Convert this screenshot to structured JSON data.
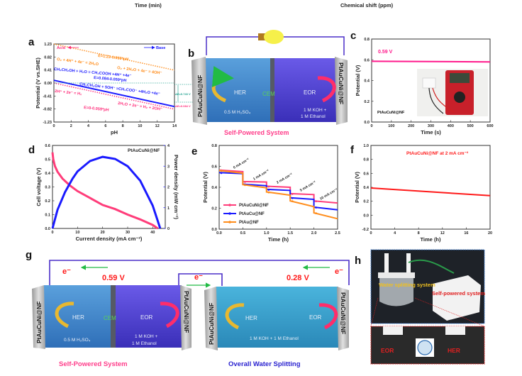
{
  "cropped_top": {
    "left_axis_label": "Time (min)",
    "right_axis_label": "Chemical shift (ppm)"
  },
  "panel_labels": {
    "a": "a",
    "b": "b",
    "c": "c",
    "d": "d",
    "e": "e",
    "f": "f",
    "g": "g",
    "h": "h"
  },
  "panel_b": {
    "electrode_left": "PtAuCuNi@NF",
    "electrode_right": "PtAuCuNi@NF",
    "her": "HER",
    "cem": "CEM",
    "eor": "EOR",
    "left_electrolyte": "0.5 M H₂SO₄",
    "right_electrolyte_1": "1 M KOH +",
    "right_electrolyte_2": "1 M Ethanol",
    "caption": "Self-Powered System",
    "icons": [
      "light-bulb-icon",
      "curved-arrow-icon"
    ]
  },
  "panel_g": {
    "electron_1": "e⁻",
    "electron_2": "e⁻",
    "electron_3": "e⁻",
    "voltage_left": "0.59 V",
    "voltage_right": "0.28 V",
    "cell1": {
      "electrode_left": "PtAuCuNi@NF",
      "electrode_right": "PtAuCuNi@NF",
      "her": "HER",
      "cem": "CEM",
      "eor": "EOR",
      "left_electrolyte": "0.5 M H₂SO₄",
      "right_electrolyte_1": "1 M KOH +",
      "right_electrolyte_2": "1 M Ethanol"
    },
    "cell2": {
      "electrode_left": "PtAuCuNi@NF",
      "electrode_right": "PtAuCuNi@NF",
      "her": "HER",
      "eor": "EOR",
      "electrolyte": "1 M KOH + 1 M Ethanol"
    },
    "caption_left": "Self-Powered System",
    "caption_right": "Overall Water Splitting"
  },
  "panel_h": {
    "label_water": "Water splitting system",
    "label_self": "Self-powered system",
    "eor": "EOR",
    "her": "HER"
  },
  "colors": {
    "pink": "#ff2d7a",
    "blue": "#1a1aff",
    "orange": "#ff8c1a",
    "teal": "#1a9e8c",
    "red": "#ff1a1a",
    "wire": "#4a2fc8",
    "green": "#22bb44"
  },
  "chart_data": [
    {
      "id": "a",
      "type": "line",
      "xlabel": "pH",
      "ylabel": "Potential (V vs.SHE)",
      "xlim": [
        0,
        14
      ],
      "ylim": [
        -1.23,
        1.23
      ],
      "xticks": [
        0,
        2,
        4,
        6,
        8,
        10,
        12,
        14
      ],
      "yticks": [
        1.23,
        0.82,
        0.41,
        0.0,
        -0.41,
        -0.82,
        -1.23
      ],
      "series": [
        {
          "style": "dotted",
          "color": "#ff8c1a",
          "x": [
            0,
            14
          ],
          "y": [
            1.23,
            0.404
          ]
        },
        {
          "style": "solid",
          "color": "#1a1aff",
          "x": [
            0,
            14
          ],
          "y": [
            0.084,
            -0.742
          ]
        },
        {
          "style": "dotted",
          "color": "#ff2d7a",
          "x": [
            0,
            14
          ],
          "y": [
            0,
            -0.826
          ]
        }
      ],
      "annotations": {
        "acid": "Acid",
        "base": "Base",
        "o2_eq_line": "E=1.23-0.059*pH",
        "o2_acid": "O₂ + 4H⁺ + 4e⁻ = 2H₂O",
        "o2_base": "O₂ + 2H₂O + 4e⁻ = 4OH⁻",
        "eth_acid": "CH₃CH₂OH + H₂O = CH₃COOH +4H⁺ +4e⁻",
        "eth_eq_line": "E=0.084-0.059*pH",
        "eth_base": "CH₃CH₂OH + 5OH⁻ =CH₃COO⁻ +4H₂O +4e⁻",
        "h2_acid": "2H⁺ + 2e⁻ = H₂",
        "h2_base": "2H₂O + 2e⁻ = H₂ + 2OH⁻",
        "h2_eq_line": "E=0-0.059*pH",
        "delta_1": "ΔE=0.743 V",
        "delta_2": "ΔE=0.084 V"
      }
    },
    {
      "id": "c",
      "type": "line",
      "xlabel": "Time (s)",
      "ylabel": "Potential (V)",
      "xlim": [
        0,
        600
      ],
      "ylim": [
        0,
        0.8
      ],
      "xticks": [
        0,
        100,
        200,
        300,
        400,
        500,
        600
      ],
      "yticks": [
        0.0,
        0.2,
        0.4,
        0.6,
        0.8
      ],
      "series": [
        {
          "color": "#ff1a8c",
          "x": [
            0,
            600
          ],
          "y": [
            0.585,
            0.58
          ]
        }
      ],
      "annotations": {
        "value": "0.59 V",
        "sample": "PtAuCuNi@NF"
      }
    },
    {
      "id": "d",
      "type": "line",
      "xlabel": "Current density (mA cm⁻²)",
      "ylabel": "Cell voltage (V)",
      "ylabel_right": "Power density (mW cm⁻²)",
      "xlim": [
        0,
        45
      ],
      "ylim": [
        0,
        0.6
      ],
      "ylim_right": [
        0,
        4
      ],
      "xticks": [
        0,
        10,
        20,
        30,
        40
      ],
      "yticks": [
        0.0,
        0.1,
        0.2,
        0.3,
        0.4,
        0.5,
        0.6
      ],
      "yticks_right": [
        0,
        1,
        2,
        3,
        4
      ],
      "series": [
        {
          "axis": "left",
          "color": "#ff3d7a",
          "x": [
            0,
            0.3,
            1,
            2,
            4,
            7,
            10,
            15,
            20,
            25,
            30,
            35,
            40,
            42
          ],
          "y": [
            0.55,
            0.5,
            0.45,
            0.41,
            0.36,
            0.31,
            0.27,
            0.22,
            0.17,
            0.14,
            0.1,
            0.065,
            0.025,
            0.0
          ]
        },
        {
          "axis": "right",
          "color": "#1a1aff",
          "x": [
            0,
            2,
            5,
            8,
            10,
            15,
            20,
            25,
            30,
            35,
            40,
            43
          ],
          "y": [
            0,
            0.9,
            1.75,
            2.4,
            2.75,
            3.25,
            3.45,
            3.35,
            3.0,
            2.3,
            1.1,
            0
          ]
        }
      ],
      "annotations": {
        "sample": "PtAuCuNi@NF"
      }
    },
    {
      "id": "e",
      "type": "line",
      "xlabel": "Time (h)",
      "ylabel": "Potential (V)",
      "xlim": [
        0,
        2.5
      ],
      "ylim": [
        0,
        0.8
      ],
      "xticks": [
        0.0,
        0.5,
        1.0,
        1.5,
        2.0,
        2.5
      ],
      "yticks": [
        0.0,
        0.2,
        0.4,
        0.6,
        0.8
      ],
      "legend": "bottom-left",
      "series": [
        {
          "name": "PtAuCuNi@NF",
          "color": "#ff3d7a",
          "x": [
            0,
            0.5,
            0.5,
            1.0,
            1.0,
            1.5,
            1.5,
            2.0,
            2.0,
            2.5
          ],
          "y": [
            0.565,
            0.55,
            0.455,
            0.45,
            0.41,
            0.4,
            0.34,
            0.33,
            0.27,
            0.25
          ]
        },
        {
          "name": "PtAuCu@NF",
          "color": "#1a1aff",
          "x": [
            0,
            0.5,
            0.5,
            1.0,
            1.0,
            1.5,
            1.5,
            2.0,
            2.0,
            2.5
          ],
          "y": [
            0.54,
            0.53,
            0.43,
            0.415,
            0.38,
            0.37,
            0.3,
            0.285,
            0.21,
            0.185
          ]
        },
        {
          "name": "PtAu@NF",
          "color": "#ff8c1a",
          "x": [
            0,
            0.5,
            0.5,
            1.0,
            1.0,
            1.5,
            1.5,
            2.0,
            2.0,
            2.5
          ],
          "y": [
            0.56,
            0.535,
            0.425,
            0.395,
            0.355,
            0.325,
            0.27,
            0.215,
            0.155,
            0.1
          ]
        }
      ],
      "annotations": {
        "step_labels": [
          "0 mA cm⁻²",
          "1 mA cm⁻²",
          "2 mA cm⁻²",
          "5 mA cm⁻²",
          "10 mA cm⁻²"
        ]
      }
    },
    {
      "id": "f",
      "type": "line",
      "xlabel": "Time (h)",
      "ylabel": "Potential (V)",
      "xlim": [
        0,
        20
      ],
      "ylim": [
        -0.2,
        1.0
      ],
      "xticks": [
        0,
        4,
        8,
        12,
        16,
        20
      ],
      "yticks": [
        -0.2,
        0.0,
        0.2,
        0.4,
        0.6,
        0.8,
        1.0
      ],
      "series": [
        {
          "color": "#ff1a1a",
          "x": [
            0,
            20
          ],
          "y": [
            0.39,
            0.28
          ]
        }
      ],
      "annotations": {
        "sample": "PtAuCuNi@NF at 2 mA cm⁻²"
      }
    }
  ]
}
